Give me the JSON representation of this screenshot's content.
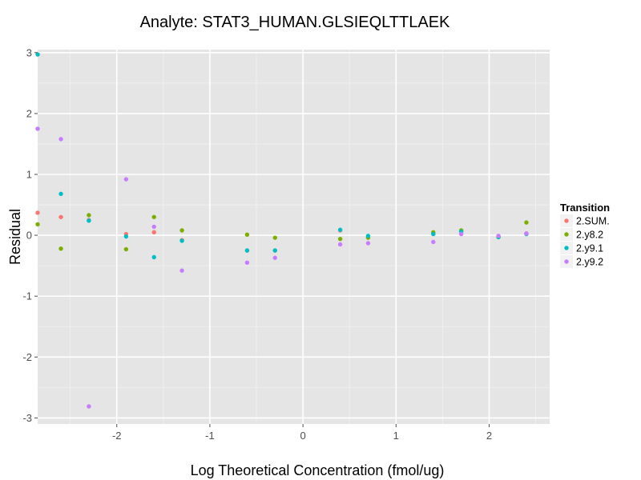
{
  "chart_data": {
    "type": "scatter",
    "title": "Analyte: STAT3_HUMAN.GLSIEQLTTLAEK",
    "xlabel": "Log Theoretical Concentration (fmol/ug)",
    "ylabel": "Residual",
    "xlim": [
      -2.85,
      2.65
    ],
    "ylim": [
      -3.1,
      3.05
    ],
    "x_ticks": [
      -2,
      -1,
      0,
      1,
      2
    ],
    "x_tick_labels": [
      "-2",
      "-1",
      "0",
      "1",
      "2"
    ],
    "y_ticks": [
      3,
      2,
      1,
      0,
      -1,
      -2,
      -3
    ],
    "y_tick_labels": [
      "3",
      "2",
      "1",
      "0",
      "-1",
      "-2",
      "-3"
    ],
    "grid": true,
    "legend": {
      "title": "Transition",
      "position": "right"
    },
    "series": [
      {
        "name": "2.SUM.",
        "color": "#F8766D",
        "points": [
          [
            -2.85,
            0.37
          ],
          [
            -2.6,
            0.3
          ],
          [
            -2.3,
            0.25
          ],
          [
            -1.9,
            0.02
          ],
          [
            -1.6,
            0.05
          ],
          [
            -1.3,
            -0.08
          ],
          [
            -0.6,
            -0.25
          ],
          [
            -0.3,
            -0.25
          ],
          [
            0.4,
            0.08
          ],
          [
            0.7,
            -0.03
          ],
          [
            1.4,
            0.03
          ],
          [
            1.7,
            0.07
          ],
          [
            2.1,
            -0.02
          ],
          [
            2.4,
            0.03
          ]
        ]
      },
      {
        "name": "2.y8.2",
        "color": "#7CAE00",
        "points": [
          [
            -2.85,
            0.18
          ],
          [
            -2.6,
            -0.22
          ],
          [
            -2.3,
            0.33
          ],
          [
            -1.9,
            -0.23
          ],
          [
            -1.6,
            0.3
          ],
          [
            -1.3,
            0.08
          ],
          [
            -0.6,
            0.01
          ],
          [
            -0.3,
            -0.04
          ],
          [
            0.4,
            -0.06
          ],
          [
            0.7,
            -0.04
          ],
          [
            1.4,
            0.05
          ],
          [
            1.7,
            0.08
          ],
          [
            2.1,
            -0.03
          ],
          [
            2.4,
            0.21
          ]
        ]
      },
      {
        "name": "2.y9.1",
        "color": "#00BFC4",
        "points": [
          [
            -2.85,
            2.97
          ],
          [
            -2.6,
            0.68
          ],
          [
            -2.3,
            0.24
          ],
          [
            -1.9,
            -0.02
          ],
          [
            -1.6,
            -0.36
          ],
          [
            -1.3,
            -0.09
          ],
          [
            -0.6,
            -0.25
          ],
          [
            -0.3,
            -0.25
          ],
          [
            0.4,
            0.09
          ],
          [
            0.7,
            -0.01
          ],
          [
            1.4,
            0.02
          ],
          [
            1.7,
            0.06
          ],
          [
            2.1,
            -0.03
          ],
          [
            2.4,
            0.02
          ]
        ]
      },
      {
        "name": "2.y9.2",
        "color": "#C77CFF",
        "points": [
          [
            -2.85,
            1.75
          ],
          [
            -2.6,
            1.58
          ],
          [
            -2.3,
            -2.81
          ],
          [
            -1.9,
            0.92
          ],
          [
            -1.6,
            0.14
          ],
          [
            -1.3,
            -0.58
          ],
          [
            -0.6,
            -0.45
          ],
          [
            -0.3,
            -0.37
          ],
          [
            0.4,
            -0.15
          ],
          [
            0.7,
            -0.13
          ],
          [
            1.4,
            -0.11
          ],
          [
            1.7,
            0.02
          ],
          [
            2.1,
            -0.01
          ],
          [
            2.4,
            0.03
          ]
        ]
      }
    ]
  }
}
